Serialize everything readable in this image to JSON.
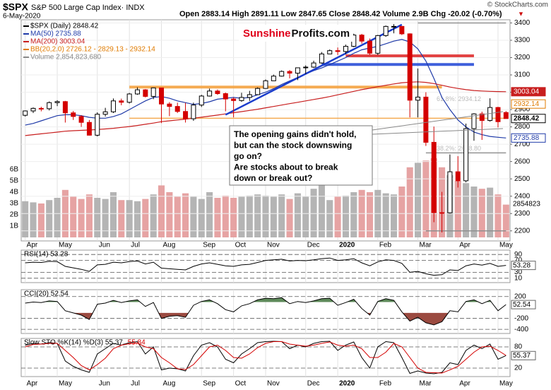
{
  "header": {
    "ticker": "$SPX",
    "name": "S&P 500 Large Cap Index· INDX",
    "date": "6-May-2020",
    "quote": "Open 2883.14  High 2891.11  Low 2847.65  Close 2848.42  Volume 2.9B  Chg -20.02 (-0.70%)",
    "arrow": "▼",
    "copyright": "© StockCharts.com"
  },
  "logo": {
    "part1": "Sunshine",
    "part2": "Profits.com"
  },
  "annotation": [
    "The opening gains didn't hold,",
    "but can the stock downswing",
    "go on?",
    "Are stocks about to break",
    "down or break out?"
  ],
  "chart_data": [
    {
      "type": "candlestick",
      "price_label": "$SPX (Daily) 2848.42",
      "bb_label": "BB(20,2.0) 2726.12 - 2829.13 - 2932.14",
      "categories": [
        "Apr",
        null,
        null,
        null,
        "May",
        null,
        null,
        null,
        null,
        "Jun",
        null,
        null,
        null,
        "Jul",
        null,
        null,
        null,
        "Aug",
        null,
        null,
        null,
        null,
        "Sep",
        null,
        null,
        null,
        "Oct",
        null,
        null,
        null,
        "Nov",
        null,
        null,
        null,
        null,
        "Dec",
        null,
        null,
        null,
        "2020",
        null,
        null,
        null,
        null,
        "Feb",
        null,
        null,
        null,
        null,
        "Mar",
        null,
        null,
        null,
        null,
        "Apr",
        null,
        null,
        null,
        null,
        "May",
        null
      ],
      "open": [
        2867,
        2892,
        2907,
        2905,
        2940,
        2946,
        2881,
        2860,
        2826,
        2752,
        2873,
        2887,
        2950,
        2942,
        2990,
        3014,
        2976,
        3025,
        2932,
        2918,
        2889,
        2847,
        2926,
        2978,
        3007,
        2992,
        2961,
        2952,
        2970,
        2986,
        3022,
        3066,
        3093,
        3120,
        3110,
        3141,
        3145,
        3169,
        3221,
        3240,
        3235,
        3265,
        3330,
        3295,
        3225,
        3327,
        3380,
        3380,
        3337,
        2954,
        2972,
        2711,
        2305,
        2304,
        2541,
        2489,
        2790,
        2875,
        2837,
        2912,
        2883
      ],
      "high": [
        2895,
        2912,
        2916,
        2947,
        2954,
        2950,
        2892,
        2868,
        2840,
        2884,
        2910,
        2964,
        2963,
        2996,
        3028,
        3018,
        3027,
        3013,
        2943,
        2940,
        2939,
        2940,
        2985,
        3021,
        3016,
        2998,
        2970,
        2997,
        3008,
        3028,
        3074,
        3102,
        3126,
        3128,
        3143,
        3155,
        3182,
        3232,
        3247,
        3258,
        3275,
        3338,
        3337,
        3310,
        3331,
        3385,
        3393,
        3382,
        3340,
        3137,
        3000,
        2802,
        2425,
        2641,
        2631,
        2819,
        2879,
        2888,
        2965,
        2916,
        2891
      ],
      "low": [
        2860,
        2880,
        2890,
        2895,
        2920,
        2825,
        2840,
        2800,
        2750,
        2745,
        2860,
        2880,
        2925,
        2935,
        2985,
        2970,
        2960,
        2822,
        2862,
        2880,
        2825,
        2835,
        2915,
        2975,
        2985,
        2890,
        2855,
        2945,
        2950,
        2990,
        3020,
        3065,
        3090,
        3080,
        3070,
        3105,
        3140,
        3165,
        3220,
        3215,
        3220,
        3260,
        3280,
        3215,
        3215,
        3320,
        3340,
        3330,
        2855,
        2855,
        2690,
        2250,
        2191,
        2300,
        2450,
        2480,
        2720,
        2725,
        2830,
        2797,
        2847
      ],
      "close": [
        2892,
        2907,
        2905,
        2940,
        2946,
        2881,
        2860,
        2826,
        2752,
        2873,
        2887,
        2950,
        2942,
        2990,
        3014,
        2976,
        3025,
        2932,
        2918,
        2889,
        2847,
        2926,
        2978,
        3007,
        2992,
        2961,
        2952,
        2970,
        2986,
        3022,
        3066,
        3093,
        3120,
        3110,
        3141,
        3145,
        3169,
        3221,
        3240,
        3235,
        3265,
        3330,
        3295,
        3225,
        3327,
        3380,
        3380,
        3337,
        2954,
        2972,
        2711,
        2305,
        2304,
        2541,
        2489,
        2790,
        2875,
        2837,
        2912,
        2830,
        2848
      ],
      "up_color": "#000000",
      "down_color": "#d40000",
      "series": [
        {
          "name": "MA(50) 2735.88",
          "color": "#1f3aa8",
          "values": [
            2810,
            2820,
            2835,
            2850,
            2865,
            2870,
            2870,
            2865,
            2855,
            2850,
            2850,
            2860,
            2875,
            2900,
            2925,
            2950,
            2970,
            2975,
            2965,
            2950,
            2940,
            2930,
            2935,
            2945,
            2960,
            2965,
            2970,
            2965,
            2970,
            2985,
            3000,
            3020,
            3045,
            3065,
            3085,
            3105,
            3125,
            3140,
            3160,
            3180,
            3200,
            3225,
            3245,
            3255,
            3265,
            3280,
            3295,
            3305,
            3290,
            3250,
            3180,
            3080,
            2970,
            2900,
            2840,
            2800,
            2770,
            2755,
            2745,
            2740,
            2736
          ]
        },
        {
          "name": "MA(200) 3003.04",
          "color": "#c81e1e",
          "values": [
            2750,
            2755,
            2760,
            2765,
            2770,
            2775,
            2778,
            2780,
            2782,
            2785,
            2788,
            2792,
            2797,
            2802,
            2808,
            2815,
            2822,
            2830,
            2835,
            2840,
            2845,
            2850,
            2856,
            2862,
            2868,
            2875,
            2882,
            2888,
            2895,
            2902,
            2910,
            2918,
            2926,
            2934,
            2942,
            2950,
            2958,
            2966,
            2975,
            2985,
            2995,
            3005,
            3015,
            3023,
            3032,
            3040,
            3048,
            3055,
            3058,
            3060,
            3057,
            3050,
            3040,
            3030,
            3022,
            3015,
            3010,
            3007,
            3005,
            3004,
            3003
          ]
        }
      ],
      "volume": {
        "name": "Volume 2,854,823,680",
        "up_color": "#b4b4b4",
        "down_color": "#e6a3a3",
        "tag": 2854823,
        "values": [
          3.2,
          3.1,
          3.0,
          3.3,
          3.5,
          4.2,
          3.6,
          3.4,
          3.8,
          3.5,
          3.4,
          4.0,
          3.3,
          3.3,
          3.2,
          3.4,
          3.8,
          4.6,
          4.0,
          3.6,
          3.9,
          3.6,
          3.4,
          4.0,
          3.5,
          3.7,
          3.5,
          3.6,
          3.7,
          3.8,
          3.7,
          3.6,
          3.8,
          3.4,
          3.9,
          3.6,
          4.3,
          5.0,
          3.3,
          3.6,
          3.7,
          4.0,
          4.2,
          4.0,
          4.2,
          3.9,
          3.8,
          4.5,
          6.2,
          6.6,
          6.8,
          7.0,
          6.2,
          5.5,
          5.0,
          4.8,
          4.5,
          4.3,
          4.4,
          3.8,
          2.9
        ],
        "ylim": [
          0,
          6.5
        ],
        "yticks": [
          {
            "value": 1,
            "label": "1B"
          },
          {
            "value": 2,
            "label": "2B"
          },
          {
            "value": 3,
            "label": "3B"
          },
          {
            "value": 4,
            "label": "4B"
          },
          {
            "value": 5,
            "label": "5B"
          },
          {
            "value": 6,
            "label": "6B"
          }
        ]
      },
      "ylim": [
        2150,
        3410
      ],
      "yticks": [
        2200,
        2300,
        2400,
        2500,
        2600,
        2700,
        2800,
        2900,
        3000,
        3100,
        3200,
        3300,
        3400
      ],
      "levels": [
        {
          "value": 3030,
          "from": 13,
          "to": 52,
          "color": "#f5a340",
          "weight": "thick"
        },
        {
          "value": 2850,
          "from": 13,
          "to": 60,
          "color": "#f5a340",
          "weight": "thin"
        },
        {
          "value": 3210,
          "from": 40,
          "to": 56,
          "color": "#e03030",
          "weight": "thick"
        },
        {
          "value": 3160,
          "from": 37,
          "to": 56,
          "color": "#2a4ed8",
          "weight": "thick"
        },
        {
          "value": 3400,
          "from": 49,
          "to": 60,
          "color": "#888888",
          "weight": "thin"
        },
        {
          "value": 2650,
          "from": 50,
          "to": 60,
          "color": "#888888",
          "weight": "thin"
        },
        {
          "value": 2200,
          "from": 50,
          "to": 60,
          "color": "#888888",
          "weight": "thin"
        }
      ],
      "trendlines": [
        {
          "x": [
            25,
            47
          ],
          "y": [
            2870,
            3390
          ],
          "color": "#1a3ccc"
        }
      ],
      "fib_labels": [
        {
          "value": 2934,
          "label": "61.8%: 2934.12"
        },
        {
          "value": 2648.8,
          "label": "38.2%: 2648.80"
        }
      ],
      "tags": [
        {
          "value": 3003.04,
          "color": "#c81e1e"
        },
        {
          "value": 2932.14,
          "color": "#e07b00"
        },
        {
          "value": 2848.42,
          "color": "#000000"
        },
        {
          "value": 2735.88,
          "color": "#1f3aa8"
        }
      ]
    },
    {
      "type": "line",
      "ylim": [
        0,
        100
      ],
      "yticks": [
        10,
        30,
        70,
        90
      ],
      "tag": 53.28,
      "series": [
        {
          "name": "RSI(14) 53.28",
          "color": "#000000",
          "values": [
            62,
            64,
            63,
            67,
            66,
            50,
            45,
            40,
            33,
            55,
            57,
            64,
            62,
            66,
            68,
            58,
            64,
            44,
            42,
            40,
            38,
            50,
            58,
            62,
            57,
            52,
            50,
            55,
            57,
            63,
            70,
            72,
            74,
            68,
            70,
            69,
            72,
            76,
            78,
            70,
            72,
            76,
            62,
            52,
            65,
            72,
            70,
            60,
            30,
            33,
            25,
            20,
            22,
            38,
            36,
            52,
            58,
            54,
            60,
            50,
            53.28
          ]
        }
      ]
    },
    {
      "type": "line",
      "ylim": [
        -450,
        300
      ],
      "yticks": [
        200,
        -200,
        -400
      ],
      "tag": 52.54,
      "fill_levels": [
        100,
        -100
      ],
      "fill_colors": [
        "#5e8a5a",
        "#9b4a40"
      ],
      "series": [
        {
          "name": "CCI(20) 52.54",
          "color": "#000000",
          "values": [
            80,
            100,
            90,
            120,
            110,
            -60,
            -100,
            -140,
            -220,
            60,
            80,
            130,
            90,
            120,
            140,
            20,
            90,
            -200,
            -160,
            -150,
            -180,
            40,
            110,
            140,
            70,
            -40,
            -80,
            30,
            70,
            140,
            170,
            160,
            180,
            70,
            110,
            90,
            120,
            160,
            170,
            40,
            90,
            150,
            -20,
            -140,
            110,
            160,
            130,
            -80,
            -250,
            -180,
            -280,
            -320,
            -260,
            -60,
            -80,
            110,
            140,
            70,
            130,
            -60,
            52.54
          ]
        }
      ]
    },
    {
      "type": "line",
      "ylim": [
        0,
        100
      ],
      "yticks": [
        20,
        80
      ],
      "tag": 55.37,
      "series": [
        {
          "name": "Slow STO %K(14) %D(3) 55.37,",
          "color": "#000000",
          "values": [
            85,
            90,
            88,
            92,
            90,
            40,
            25,
            15,
            8,
            60,
            75,
            90,
            85,
            92,
            95,
            60,
            80,
            15,
            20,
            18,
            12,
            55,
            85,
            92,
            80,
            45,
            35,
            60,
            75,
            92,
            95,
            96,
            95,
            75,
            85,
            80,
            90,
            95,
            96,
            70,
            85,
            94,
            50,
            20,
            80,
            95,
            92,
            50,
            5,
            12,
            6,
            4,
            8,
            35,
            30,
            70,
            85,
            75,
            88,
            45,
            55.37
          ]
        },
        {
          "name": "55.84",
          "color": "#d40000",
          "values": [
            80,
            87,
            88,
            90,
            90,
            70,
            50,
            27,
            15,
            30,
            48,
            75,
            85,
            89,
            91,
            80,
            75,
            50,
            35,
            18,
            16,
            30,
            55,
            80,
            85,
            70,
            50,
            48,
            60,
            78,
            90,
            95,
            95,
            88,
            85,
            82,
            85,
            90,
            94,
            85,
            82,
            85,
            75,
            50,
            50,
            65,
            90,
            80,
            50,
            20,
            8,
            7,
            6,
            15,
            25,
            45,
            65,
            80,
            82,
            70,
            55.84
          ]
        }
      ]
    }
  ]
}
